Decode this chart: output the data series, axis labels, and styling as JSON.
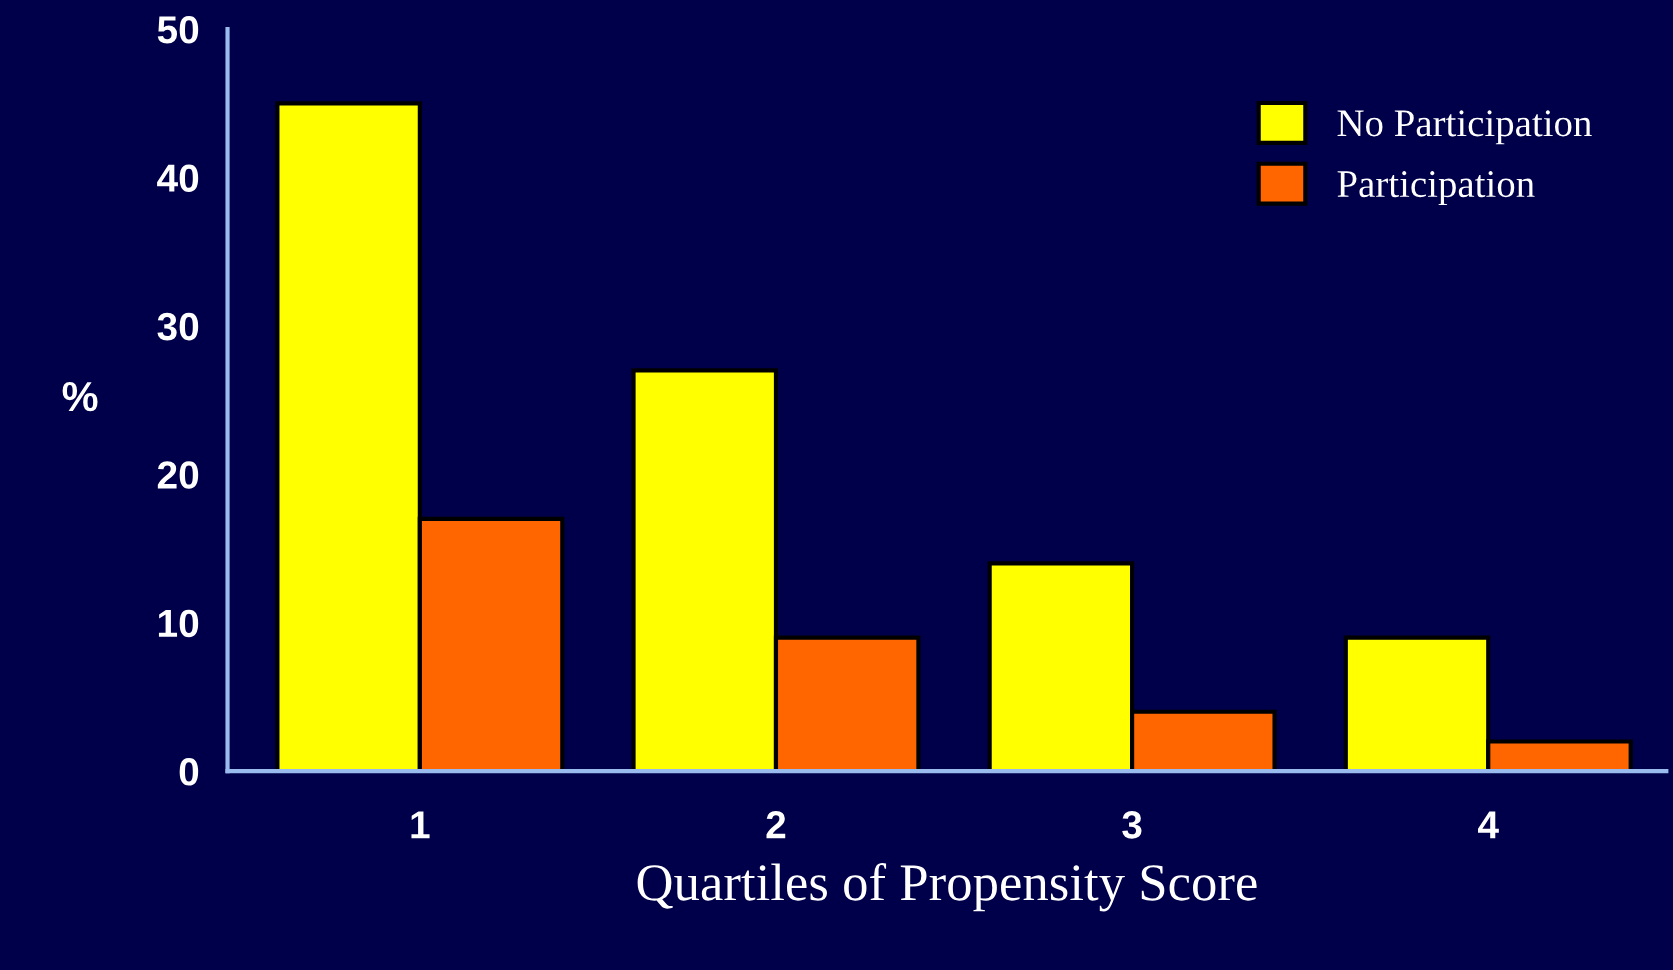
{
  "chart_data": {
    "type": "bar",
    "xlabel": "Quartiles of Propensity Score",
    "ylabel": "%",
    "categories": [
      "1",
      "2",
      "3",
      "4"
    ],
    "series": [
      {
        "name": "No Participation",
        "color": "#ffff00",
        "values": [
          45,
          27,
          14,
          9
        ]
      },
      {
        "name": "Participation",
        "color": "#ff6600",
        "values": [
          17,
          9,
          4,
          2
        ]
      }
    ],
    "ylim": [
      0,
      50
    ],
    "yticks": [
      0,
      10,
      20,
      30,
      40,
      50
    ],
    "grid": false,
    "legend": "top right"
  }
}
